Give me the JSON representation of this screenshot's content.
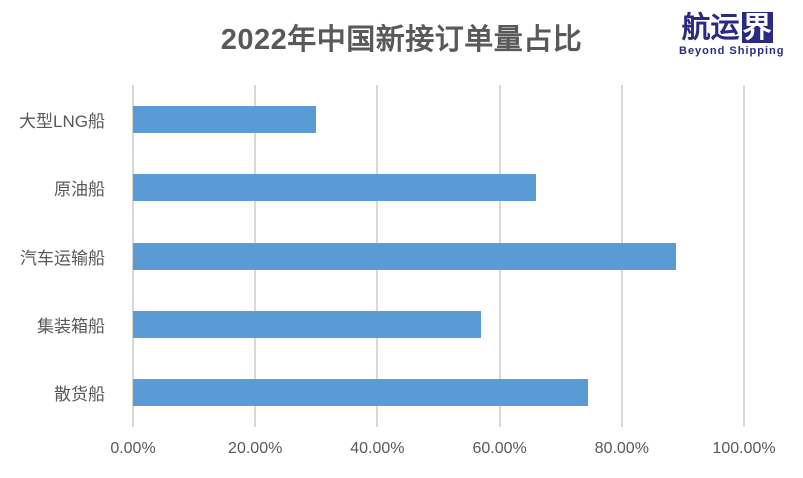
{
  "logo": {
    "text_plain": "航运",
    "text_boxed": "界",
    "subtitle": "Beyond Shipping",
    "color": "#2B2A82"
  },
  "chart_data": {
    "type": "bar",
    "orientation": "horizontal",
    "title": "2022年中国新接订单量占比",
    "categories": [
      "大型LNG船",
      "原油船",
      "汽车运输船",
      "集装箱船",
      "散货船"
    ],
    "values": [
      30,
      66,
      88.8,
      57,
      74.4
    ],
    "unit": "%",
    "xlim": [
      0,
      100
    ],
    "x_tick_labels": [
      "0.00%",
      "20.00%",
      "40.00%",
      "60.00%",
      "80.00%",
      "100.00%"
    ],
    "x_tick_values": [
      0,
      20,
      40,
      60,
      80,
      100
    ],
    "grid": true,
    "legend": false,
    "bar_color": "#5B9BD5",
    "gridline_color": "#D9D9D9",
    "text_color": "#595959"
  }
}
